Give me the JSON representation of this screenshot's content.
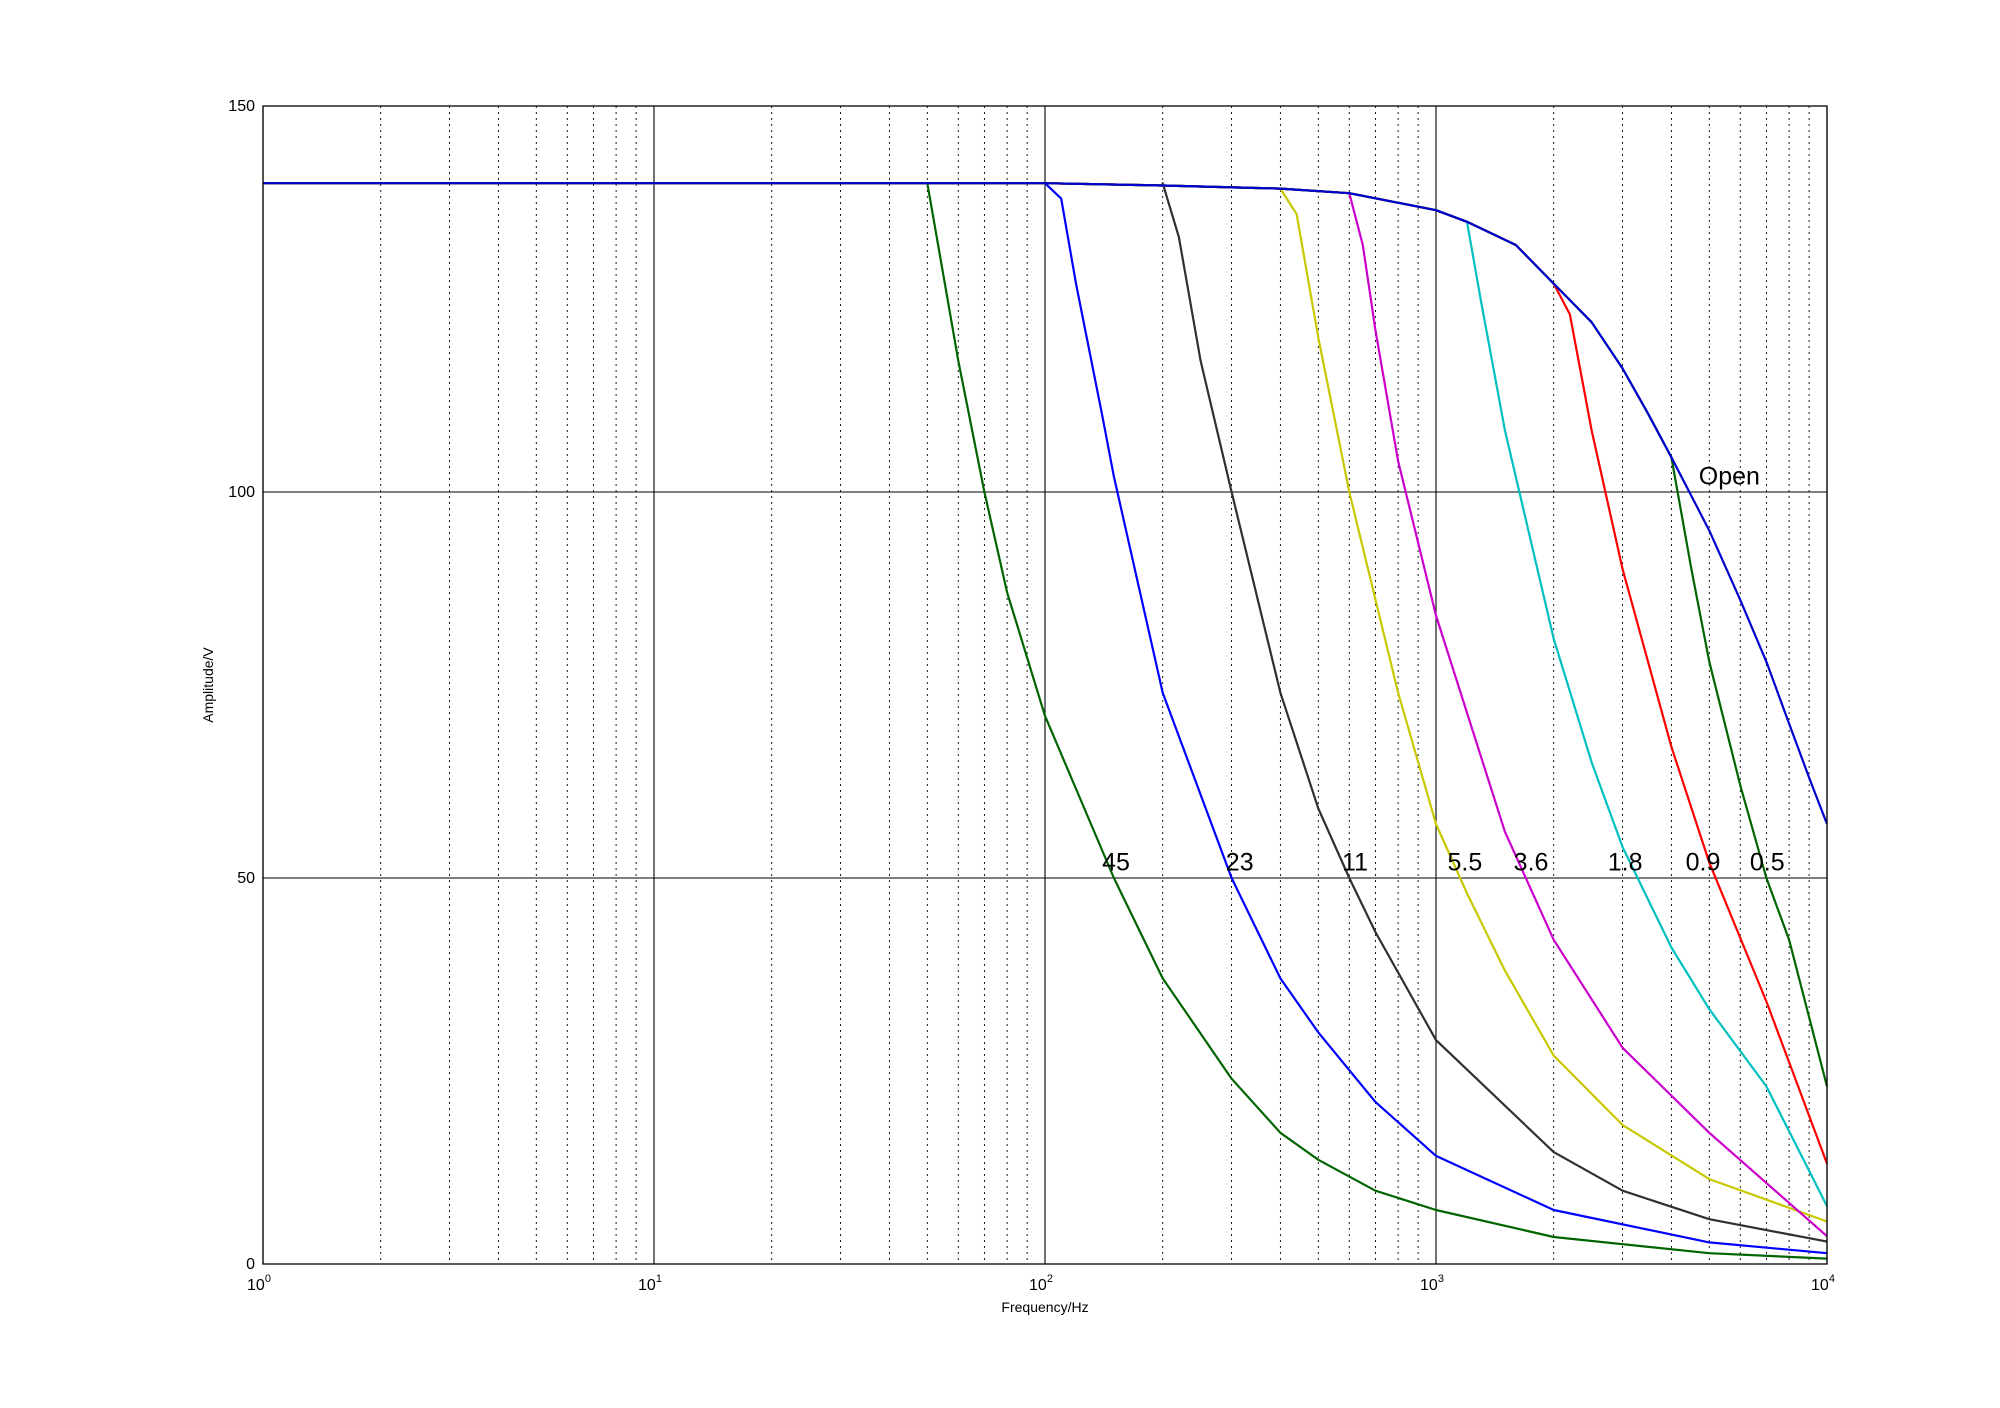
{
  "chart_data": {
    "type": "line",
    "xlabel": "Frequency/Hz",
    "ylabel": "Amplitude/V",
    "x_scale": "log",
    "xlim": [
      1,
      10000
    ],
    "ylim": [
      0,
      150
    ],
    "grid": {
      "x_major": "solid",
      "x_minor": "dotted",
      "y_major": "solid"
    },
    "x_ticks": [
      {
        "base": "10",
        "exp": "0",
        "value": 1
      },
      {
        "base": "10",
        "exp": "1",
        "value": 10
      },
      {
        "base": "10",
        "exp": "2",
        "value": 100
      },
      {
        "base": "10",
        "exp": "3",
        "value": 1000
      },
      {
        "base": "10",
        "exp": "4",
        "value": 10000
      }
    ],
    "y_ticks": [
      "0",
      "50",
      "100",
      "150"
    ],
    "open_curve": {
      "label": "Open",
      "color": "#0000cc",
      "points": [
        [
          1,
          140
        ],
        [
          10,
          140
        ],
        [
          100,
          140
        ],
        [
          200,
          139.7
        ],
        [
          400,
          139.3
        ],
        [
          600,
          138.7
        ],
        [
          1000,
          136.5
        ],
        [
          1200,
          135.0
        ],
        [
          1600,
          132.0
        ],
        [
          2000,
          127.0
        ],
        [
          2500,
          122.0
        ],
        [
          3000,
          116.0
        ],
        [
          3500,
          110.0
        ],
        [
          4000,
          104.5
        ],
        [
          5000,
          95.0
        ],
        [
          6000,
          86.0
        ],
        [
          7000,
          78.0
        ],
        [
          8000,
          70.0
        ],
        [
          9000,
          63.0
        ],
        [
          10000,
          57.0
        ]
      ]
    },
    "series": [
      {
        "name": "45",
        "color": "#006400",
        "cutoff": 50,
        "points": [
          [
            50,
            140
          ],
          [
            55,
            128
          ],
          [
            60,
            117
          ],
          [
            70,
            100
          ],
          [
            80,
            87
          ],
          [
            100,
            71
          ],
          [
            150,
            50
          ],
          [
            200,
            37
          ],
          [
            300,
            24
          ],
          [
            400,
            17
          ],
          [
            500,
            13.5
          ],
          [
            700,
            9.5
          ],
          [
            1000,
            7
          ],
          [
            2000,
            3.5
          ],
          [
            5000,
            1.4
          ],
          [
            10000,
            0.7
          ]
        ]
      },
      {
        "name": "23",
        "color": "#0000ff",
        "cutoff": 100,
        "points": [
          [
            100,
            140
          ],
          [
            110,
            138
          ],
          [
            120,
            127
          ],
          [
            140,
            110
          ],
          [
            150,
            102
          ],
          [
            200,
            74
          ],
          [
            300,
            50
          ],
          [
            400,
            37
          ],
          [
            500,
            30
          ],
          [
            700,
            21
          ],
          [
            1000,
            14
          ],
          [
            2000,
            7
          ],
          [
            5000,
            2.8
          ],
          [
            10000,
            1.4
          ]
        ]
      },
      {
        "name": "11",
        "color": "#303030",
        "cutoff": 200,
        "points": [
          [
            200,
            140
          ],
          [
            220,
            133
          ],
          [
            250,
            117
          ],
          [
            300,
            100
          ],
          [
            400,
            74
          ],
          [
            500,
            59
          ],
          [
            600,
            50
          ],
          [
            700,
            43
          ],
          [
            1000,
            29
          ],
          [
            2000,
            14.5
          ],
          [
            3000,
            9.5
          ],
          [
            5000,
            5.8
          ],
          [
            10000,
            2.9
          ]
        ]
      },
      {
        "name": "5.5",
        "color": "#c8c800",
        "cutoff": 400,
        "points": [
          [
            400,
            139.3
          ],
          [
            440,
            136
          ],
          [
            500,
            120
          ],
          [
            600,
            100
          ],
          [
            800,
            74
          ],
          [
            1000,
            57
          ],
          [
            1200,
            48
          ],
          [
            1500,
            38
          ],
          [
            2000,
            27
          ],
          [
            3000,
            18
          ],
          [
            5000,
            11
          ],
          [
            10000,
            5.5
          ]
        ]
      },
      {
        "name": "3.6",
        "color": "#cc00cc",
        "cutoff": 600,
        "points": [
          [
            600,
            138.7
          ],
          [
            650,
            132
          ],
          [
            700,
            121
          ],
          [
            800,
            104
          ],
          [
            1000,
            84
          ],
          [
            1500,
            56
          ],
          [
            2000,
            42
          ],
          [
            3000,
            28
          ],
          [
            5000,
            17
          ],
          [
            10000,
            3.6
          ]
        ]
      },
      {
        "name": "1.8",
        "color": "#00c0c0",
        "cutoff": 1200,
        "points": [
          [
            1200,
            135
          ],
          [
            1300,
            125
          ],
          [
            1500,
            108
          ],
          [
            2000,
            81
          ],
          [
            2500,
            65
          ],
          [
            3000,
            54
          ],
          [
            4000,
            41
          ],
          [
            5000,
            33
          ],
          [
            7000,
            23
          ],
          [
            10000,
            7.5
          ]
        ]
      },
      {
        "name": "0.9",
        "color": "#ff0000",
        "cutoff": 2000,
        "points": [
          [
            2000,
            127
          ],
          [
            2200,
            123
          ],
          [
            2500,
            108
          ],
          [
            3000,
            90
          ],
          [
            4000,
            67
          ],
          [
            5000,
            52
          ],
          [
            7000,
            34
          ],
          [
            10000,
            13
          ]
        ]
      },
      {
        "name": "0.5",
        "color": "#006400",
        "cutoff": 4000,
        "points": [
          [
            4000,
            104.5
          ],
          [
            4500,
            90
          ],
          [
            5000,
            78
          ],
          [
            6000,
            62
          ],
          [
            7000,
            50
          ],
          [
            8000,
            42
          ],
          [
            10000,
            23
          ]
        ]
      }
    ],
    "curve_labels": [
      {
        "text": "Open",
        "x": 4700,
        "y": 101
      },
      {
        "text": "45",
        "x": 140,
        "y": 51
      },
      {
        "text": "23",
        "x": 290,
        "y": 51
      },
      {
        "text": "11",
        "x": 575,
        "y": 51
      },
      {
        "text": "5.5",
        "x": 1070,
        "y": 51
      },
      {
        "text": "3.6",
        "x": 1580,
        "y": 51
      },
      {
        "text": "1.8",
        "x": 2750,
        "y": 51
      },
      {
        "text": "0.9",
        "x": 4350,
        "y": 51
      },
      {
        "text": "0.5",
        "x": 6350,
        "y": 51
      }
    ]
  }
}
